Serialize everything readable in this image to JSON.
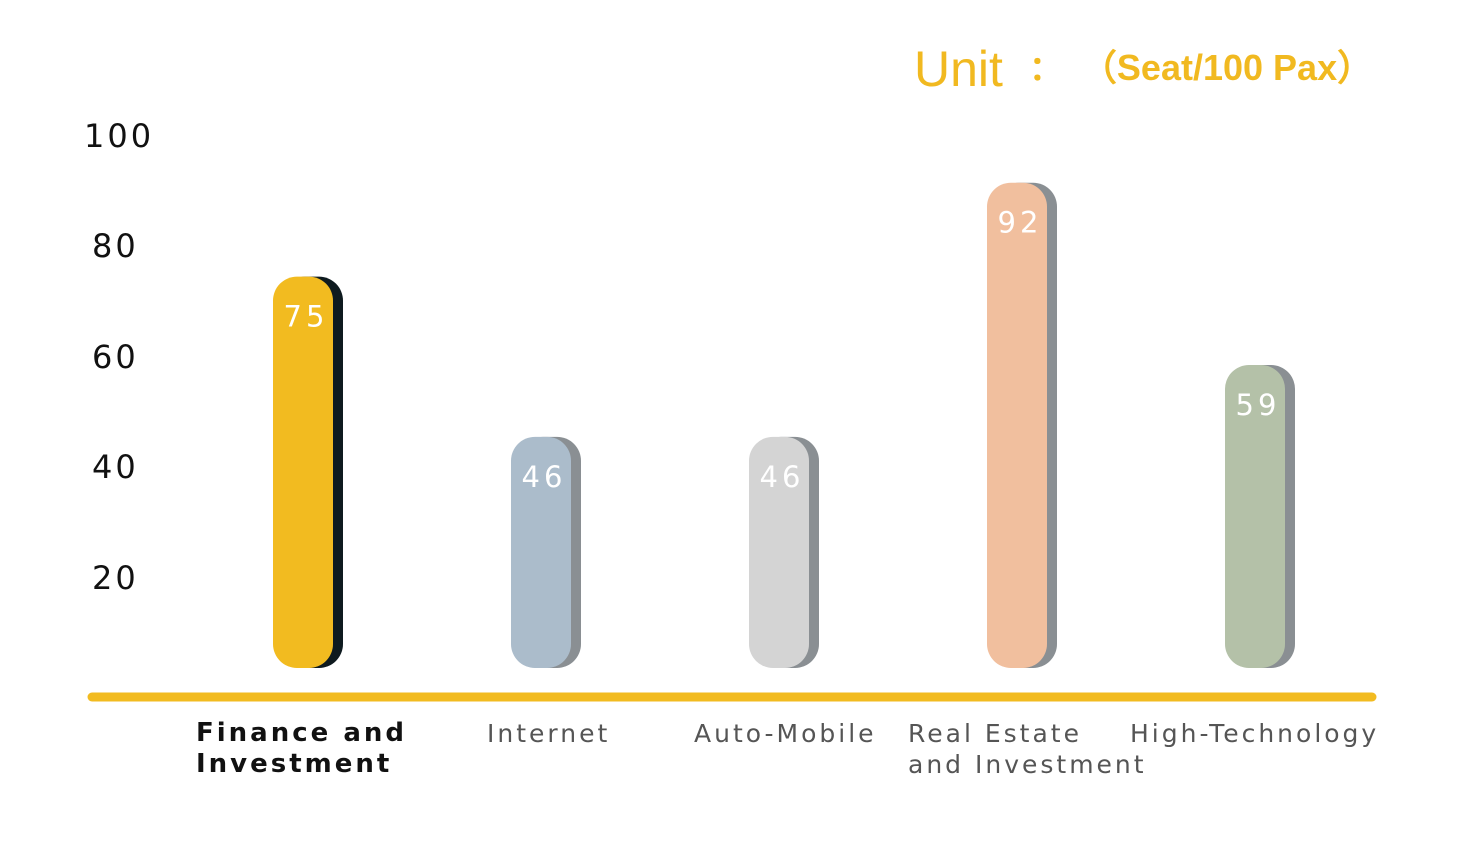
{
  "chart_data": {
    "type": "bar",
    "title_unit": {
      "label": "Unit",
      "separator": "：",
      "unit": "（Seat/100 Pax）"
    },
    "categories": [
      [
        "Finance and",
        "Investment"
      ],
      [
        "Internet"
      ],
      [
        "Auto-Mobile"
      ],
      [
        "Real Estate",
        "and Investment"
      ],
      [
        "High-Technology"
      ]
    ],
    "values": [
      75,
      46,
      46,
      92,
      59
    ],
    "data_labels": [
      "75",
      "46",
      "46",
      "92",
      "59"
    ],
    "colors": [
      "#f2bb20",
      "#abbccb",
      "#d4d4d4",
      "#f1bf9e",
      "#b4c1a8"
    ],
    "shadow_colors": [
      "#0e1a1f",
      "#8a8f93",
      "#8a8f93",
      "#8a8f93",
      "#8a8f93"
    ],
    "highlight_index": 0,
    "yticks": [
      "100",
      "80",
      "60",
      "40",
      "20"
    ],
    "ylim": [
      0,
      100
    ],
    "axis_color": "#f2bb20",
    "grid": false
  }
}
